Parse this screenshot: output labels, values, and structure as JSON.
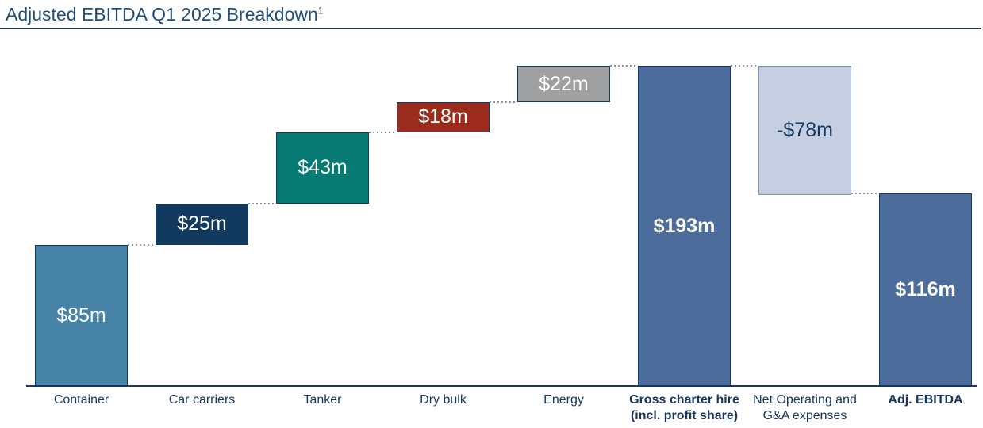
{
  "title": {
    "text": "Adjusted EBITDA Q1 2025 Breakdown",
    "superscript": "1"
  },
  "colors": {
    "background": "#FFFFFF",
    "title": "#1F4E79",
    "rule": "#17375E",
    "axis": "#17375E",
    "category_label": "#17375E",
    "connector": "#8497AF"
  },
  "chart_data": {
    "type": "bar",
    "subtype": "waterfall",
    "title": "Adjusted EBITDA Q1 2025 Breakdown",
    "unit": "$m",
    "ylim": [
      0,
      193
    ],
    "grid": false,
    "legend": false,
    "categories": [
      "Container",
      "Car carriers",
      "Tanker",
      "Dry bulk",
      "Energy",
      "Gross charter hire (incl. profit share)",
      "Net Operating and G&A expenses",
      "Adj. EBITDA"
    ],
    "values": [
      85,
      25,
      43,
      18,
      22,
      193,
      -78,
      116
    ],
    "bars": [
      {
        "category": "Container",
        "label": "$85m",
        "value": 85,
        "base": 0,
        "top": 85,
        "fill": "#4783A6",
        "border": "#17375E",
        "text_color": "#FFFFFF",
        "bold_value": false,
        "bold_category": false
      },
      {
        "category": "Car carriers",
        "label": "$25m",
        "value": 25,
        "base": 85,
        "top": 110,
        "fill": "#123A5E",
        "border": "#17375E",
        "text_color": "#FFFFFF",
        "bold_value": false,
        "bold_category": false
      },
      {
        "category": "Tanker",
        "label": "$43m",
        "value": 43,
        "base": 110,
        "top": 153,
        "fill": "#047A72",
        "border": "#17375E",
        "text_color": "#FFFFFF",
        "bold_value": false,
        "bold_category": false
      },
      {
        "category": "Dry bulk",
        "label": "$18m",
        "value": 18,
        "base": 153,
        "top": 171,
        "fill": "#9C2C1E",
        "border": "#17375E",
        "text_color": "#FFFFFF",
        "bold_value": false,
        "bold_category": false
      },
      {
        "category": "Energy",
        "label": "$22m",
        "value": 22,
        "base": 171,
        "top": 193,
        "fill": "#9EA0A2",
        "border": "#17375E",
        "text_color": "#FFFFFF",
        "bold_value": false,
        "bold_category": false
      },
      {
        "category": "Gross charter hire (incl. profit share)",
        "category_lines": [
          "Gross charter hire",
          "(incl. profit share)"
        ],
        "label": "$193m",
        "value": 193,
        "base": 0,
        "top": 193,
        "fill": "#4C6D9C",
        "border": "#17375E",
        "text_color": "#FFFFFF",
        "bold_value": true,
        "bold_category": true
      },
      {
        "category": "Net Operating and G&A expenses",
        "category_lines": [
          "Net Operating and",
          "G&A expenses"
        ],
        "label": "-$78m",
        "value": -78,
        "base": 115,
        "top": 193,
        "fill": "#C5CFE1",
        "border": "#7E96B8",
        "text_color": "#17375E",
        "bold_value": false,
        "bold_category": false
      },
      {
        "category": "Adj. EBITDA",
        "label": "$116m",
        "value": 116,
        "base": 0,
        "top": 116,
        "fill": "#4C6D9C",
        "border": "#17375E",
        "text_color": "#FFFFFF",
        "bold_value": true,
        "bold_category": true
      }
    ],
    "connectors": [
      {
        "from": 0,
        "to": 1,
        "level": 85
      },
      {
        "from": 1,
        "to": 2,
        "level": 110
      },
      {
        "from": 2,
        "to": 3,
        "level": 153
      },
      {
        "from": 3,
        "to": 4,
        "level": 171
      },
      {
        "from": 4,
        "to": 5,
        "level": 193
      },
      {
        "from": 5,
        "to": 6,
        "level": 193
      },
      {
        "from": 6,
        "to": 7,
        "level": 116
      }
    ]
  }
}
